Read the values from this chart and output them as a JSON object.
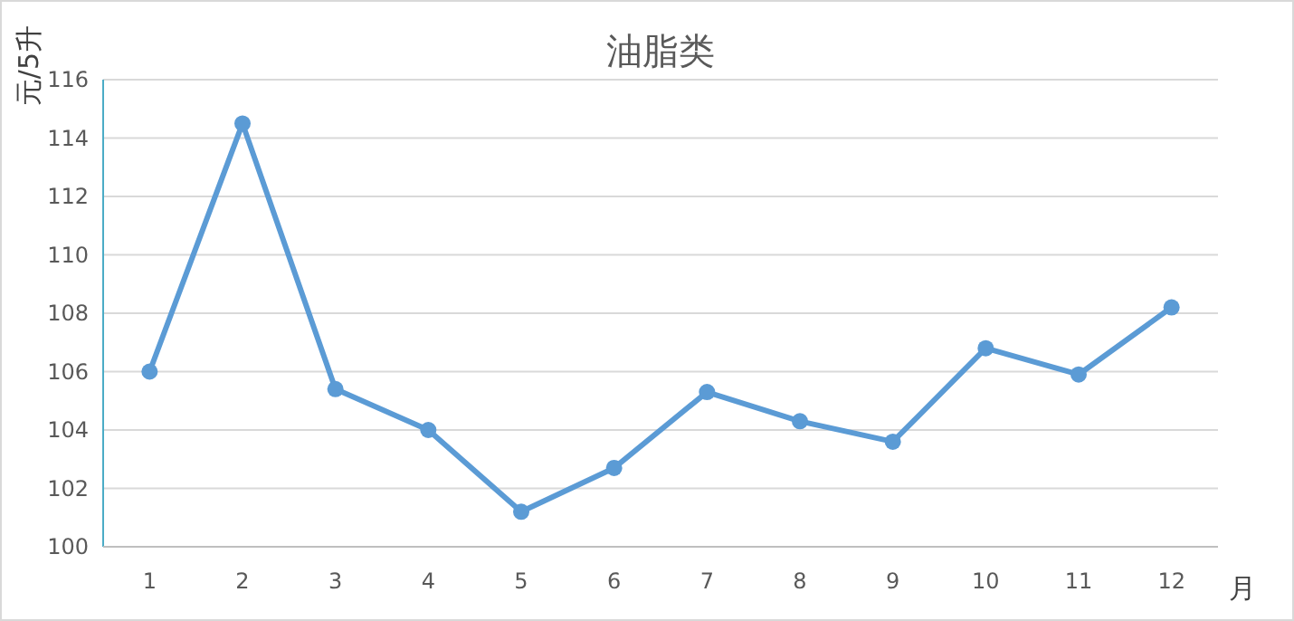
{
  "chart_data": {
    "type": "line",
    "title": "油脂类",
    "ylabel": "元/5升",
    "xlabel": "月",
    "categories": [
      "1",
      "2",
      "3",
      "4",
      "5",
      "6",
      "7",
      "8",
      "9",
      "10",
      "11",
      "12"
    ],
    "series": [
      {
        "color": "#5b9bd5",
        "values": [
          106.0,
          114.5,
          105.4,
          104.0,
          101.2,
          102.7,
          105.3,
          104.3,
          103.6,
          106.8,
          105.9,
          108.2
        ]
      }
    ],
    "ylim": [
      100,
      116
    ],
    "yticks": [
      100,
      102,
      104,
      106,
      108,
      110,
      112,
      114,
      116
    ],
    "grid": "y",
    "marker": "circle",
    "line_style": "solid"
  }
}
